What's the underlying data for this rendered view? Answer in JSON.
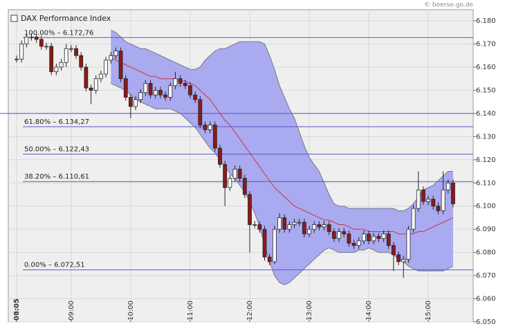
{
  "chart_data": {
    "type": "candlestick",
    "title": "DAX Performance Index",
    "watermark": "© boerse-go.de",
    "categories": [
      "08:05",
      null,
      null,
      null,
      null,
      null,
      null,
      null,
      null,
      null,
      null,
      "09:00",
      null,
      null,
      null,
      null,
      null,
      null,
      null,
      null,
      null,
      null,
      null,
      "10:00",
      null,
      null,
      null,
      null,
      null,
      null,
      null,
      null,
      null,
      null,
      null,
      "11:00",
      null,
      null,
      null,
      null,
      null,
      null,
      null,
      null,
      null,
      null,
      null,
      "12:00",
      null,
      null,
      null,
      null,
      null,
      null,
      null,
      null,
      null,
      null,
      null,
      "13:00",
      null,
      null,
      null,
      null,
      null,
      null,
      null,
      null,
      null,
      null,
      null,
      "14:00",
      null,
      null,
      null,
      null,
      null,
      null,
      null,
      null,
      null,
      null,
      null,
      "15:00",
      null,
      null,
      null,
      null,
      null
    ],
    "open": [
      6163.5,
      6163.5,
      6170,
      6173,
      6173,
      6172,
      6169,
      6169,
      6158,
      6160,
      6162,
      6168,
      6168,
      6165,
      6160,
      6151,
      6150,
      6155,
      6157,
      6163,
      6165,
      6167,
      6155,
      6147,
      6143,
      6146,
      6149,
      6153,
      6148,
      6150,
      6148,
      6147,
      6152,
      6155,
      6153,
      6152,
      6148,
      6146,
      6135,
      6133,
      6135,
      6125,
      6118,
      6108,
      6112,
      6116,
      6112,
      6105,
      6092,
      6092,
      6090,
      6078,
      6076,
      6090,
      6095,
      6090,
      6092,
      6093,
      6093,
      6088,
      6090,
      6092,
      6091,
      6092,
      6089,
      6086,
      6089,
      6088,
      6084,
      6083,
      6085,
      6088,
      6085,
      6087,
      6086,
      6088,
      6083,
      6079,
      6076,
      6077,
      6090,
      6099,
      6107,
      6102,
      6103,
      6100,
      6098,
      6107,
      6110
    ],
    "high": [
      6165,
      6171.5,
      6174.5,
      6174.5,
      6174.5,
      6173.5,
      6170.5,
      6170.5,
      6161.5,
      6163.5,
      6170,
      6169.5,
      6169.5,
      6166.5,
      6161.5,
      6152.5,
      6156.5,
      6158.5,
      6164.5,
      6166.5,
      6168.5,
      6168.5,
      6156.5,
      6148.5,
      6147.5,
      6150.5,
      6154.5,
      6154.5,
      6151.5,
      6151.5,
      6149.5,
      6153.5,
      6158,
      6156.5,
      6154.5,
      6153.5,
      6149.5,
      6147.5,
      6136.5,
      6136.5,
      6136.5,
      6126.5,
      6119.5,
      6113.5,
      6117.5,
      6117.5,
      6113.5,
      6106.5,
      6093.5,
      6093.5,
      6091.5,
      6079.5,
      6091.5,
      6097,
      6096.5,
      6093.5,
      6094.5,
      6094.5,
      6094.5,
      6091.5,
      6093.5,
      6093.5,
      6093.5,
      6093.5,
      6090.5,
      6090.5,
      6090.5,
      6089.5,
      6085.5,
      6086.5,
      6089.5,
      6089.5,
      6088.5,
      6088.5,
      6089.5,
      6089.5,
      6084.5,
      6080.5,
      6078.5,
      6091.5,
      6100.5,
      6115,
      6108.5,
      6104.5,
      6104.5,
      6101.5,
      6115,
      6111.5,
      6111.5
    ],
    "low": [
      6162,
      6162,
      6168.5,
      6171.5,
      6170.5,
      6167.5,
      6167.5,
      6156.5,
      6156.5,
      6158.5,
      6160,
      6166.5,
      6163.5,
      6158.5,
      6149.5,
      6144,
      6148.5,
      6153.5,
      6155.5,
      6161.5,
      6163.5,
      6153.5,
      6145.5,
      6138,
      6141.5,
      6144.5,
      6147.5,
      6146.5,
      6146.5,
      6146.5,
      6145.5,
      6145.5,
      6150.5,
      6151.5,
      6150.5,
      6146.5,
      6144.5,
      6133.5,
      6131.5,
      6131.5,
      6123.5,
      6116.5,
      6100,
      6106.5,
      6110.5,
      6110.5,
      6103.5,
      6080,
      6090.5,
      6088.5,
      6076.5,
      6074.5,
      6075,
      6088.5,
      6088.5,
      6088.5,
      6090.5,
      6091.5,
      6086.5,
      6086.5,
      6088.5,
      6089.5,
      6089.5,
      6087.5,
      6084.5,
      6084.5,
      6086.5,
      6082.5,
      6081.5,
      6081.5,
      6083.5,
      6083.5,
      6083.5,
      6084.5,
      6084.5,
      6081.5,
      6072,
      6074.5,
      6069,
      6075.5,
      6088.5,
      6097.5,
      6100.5,
      6100.5,
      6098.5,
      6096.5,
      6096.5,
      6105.5,
      6099.5
    ],
    "close": [
      6163.5,
      6170,
      6173,
      6173,
      6172,
      6169,
      6169,
      6158,
      6160,
      6162,
      6168,
      6168,
      6165,
      6160,
      6151,
      6150,
      6155,
      6157,
      6163,
      6165,
      6167,
      6155,
      6147,
      6143,
      6146,
      6149,
      6153,
      6148,
      6150,
      6148,
      6147,
      6152,
      6155,
      6153,
      6152,
      6148,
      6146,
      6135,
      6133,
      6135,
      6125,
      6118,
      6108,
      6112,
      6116,
      6112,
      6105,
      6092,
      6092,
      6090,
      6078,
      6076,
      6090,
      6095,
      6090,
      6092,
      6093,
      6093,
      6088,
      6090,
      6092,
      6091,
      6092,
      6089,
      6086,
      6089,
      6088,
      6084,
      6083,
      6085,
      6088,
      6085,
      6087,
      6086,
      6088,
      6083,
      6079,
      6076,
      6077,
      6090,
      6099,
      6107,
      6102,
      6103,
      6100,
      6098,
      6107,
      6110,
      6101
    ],
    "up_color": "#ffffff",
    "down_color": "#8b1a1a",
    "bands": {
      "fill": "#aaaaf0",
      "edge_color": "#777788",
      "middle_color": "#cc3344",
      "upper": [
        null,
        null,
        null,
        null,
        null,
        null,
        null,
        null,
        null,
        null,
        null,
        null,
        null,
        null,
        null,
        null,
        null,
        null,
        null,
        6176,
        6175,
        6173,
        6171,
        6170,
        6169,
        6168,
        6168,
        6167,
        6166,
        6165,
        6164,
        6163,
        6162,
        6161,
        6160,
        6159,
        6159,
        6160,
        6163,
        6165,
        6167,
        6168,
        6168,
        6169,
        6170,
        6171,
        6171,
        6171,
        6171,
        6171,
        6170,
        6165,
        6159,
        6152,
        6147,
        6142,
        6138,
        6132,
        6126,
        6121,
        6118,
        6115,
        6110,
        6105,
        6101,
        6100,
        6100,
        6099,
        6099,
        6099,
        6099,
        6099,
        6099,
        6099,
        6099,
        6099,
        6099,
        6098,
        6098,
        6099,
        6101,
        6104,
        6107,
        6108,
        6109,
        6111,
        6113,
        6115,
        6115
      ],
      "middle": [
        null,
        null,
        null,
        null,
        null,
        null,
        null,
        null,
        null,
        null,
        null,
        null,
        null,
        null,
        null,
        null,
        null,
        null,
        null,
        6164,
        6163,
        6162,
        6161,
        6160,
        6159,
        6158,
        6157,
        6156,
        6156,
        6155,
        6155,
        6155,
        6155,
        6154,
        6154,
        6153,
        6152,
        6150,
        6148,
        6146,
        6143,
        6140,
        6137,
        6135,
        6132,
        6129,
        6126,
        6123,
        6120,
        6117,
        6114,
        6111,
        6108,
        6106,
        6104,
        6102,
        6100,
        6099,
        6098,
        6097,
        6096,
        6095,
        6094,
        6094,
        6093,
        6092,
        6092,
        6091,
        6090,
        6090,
        6090,
        6089,
        6089,
        6089,
        6089,
        6089,
        6089,
        6088,
        6088,
        6088,
        6088,
        6089,
        6089,
        6090,
        6091,
        6092,
        6093,
        6094,
        6095
      ],
      "lower": [
        null,
        null,
        null,
        null,
        null,
        null,
        null,
        null,
        null,
        null,
        null,
        null,
        null,
        null,
        null,
        null,
        null,
        null,
        null,
        6153,
        6152,
        6151,
        6150,
        6148,
        6146,
        6145,
        6144,
        6143,
        6142,
        6142,
        6142,
        6142,
        6141,
        6140,
        6138,
        6136,
        6134,
        6131,
        6128,
        6125,
        6123,
        6120,
        6117,
        6114,
        6112,
        6109,
        6106,
        6102,
        6097,
        6091,
        6083,
        6076,
        6070,
        6067,
        6066,
        6067,
        6069,
        6071,
        6073,
        6075,
        6077,
        6079,
        6081,
        6082,
        6081,
        6080,
        6080,
        6080,
        6080,
        6081,
        6081,
        6082,
        6081,
        6080,
        6080,
        6080,
        6079,
        6077,
        6076,
        6074,
        6073,
        6072,
        6072,
        6072,
        6072,
        6072,
        6072,
        6073,
        6074
      ]
    },
    "fib_color": "#5555cc",
    "fib_levels": [
      {
        "value": 6172.76,
        "label": "100.00% – 6.172,76"
      },
      {
        "value": 6134.27,
        "label": "61.80% – 6.134,27"
      },
      {
        "value": 6122.43,
        "label": "50.00% – 6.122,43"
      },
      {
        "value": 6110.61,
        "label": "38.20% – 6.110,61"
      },
      {
        "value": 6072.51,
        "label": "0.00% – 6.072,51"
      }
    ],
    "reference_lines": [
      6140
    ],
    "ylim": [
      6050,
      6184.8
    ],
    "yticks": [
      {
        "value": 6050,
        "label": "6.050"
      },
      {
        "value": 6060,
        "label": "6.060"
      },
      {
        "value": 6070,
        "label": "6.070"
      },
      {
        "value": 6080,
        "label": "6.080"
      },
      {
        "value": 6090,
        "label": "6.090"
      },
      {
        "value": 6100,
        "label": "6.100"
      },
      {
        "value": 6110,
        "label": "6.110"
      },
      {
        "value": 6120,
        "label": "6.120"
      },
      {
        "value": 6130,
        "label": "6.130"
      },
      {
        "value": 6140,
        "label": "6.140"
      },
      {
        "value": 6150,
        "label": "6.150"
      },
      {
        "value": 6160,
        "label": "6.160"
      },
      {
        "value": 6170,
        "label": "6.170"
      },
      {
        "value": 6180,
        "label": "6.180"
      }
    ],
    "grid": true
  }
}
